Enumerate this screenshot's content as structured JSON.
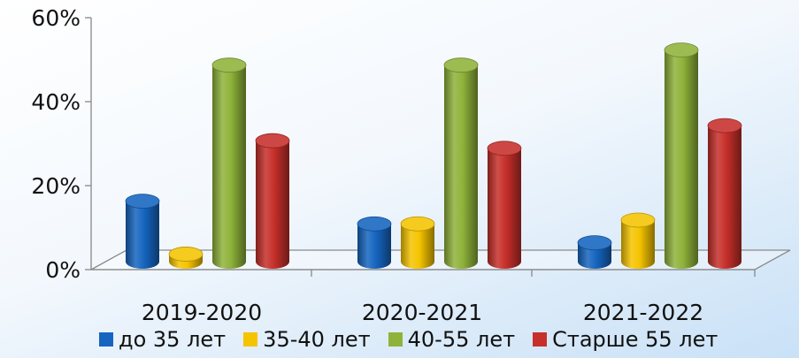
{
  "chart_data": {
    "type": "bar",
    "style": "3d-cylinder",
    "categories": [
      "2019-2020",
      "2020-2021",
      "2021-2022"
    ],
    "series": [
      {
        "name": "до 35 лет",
        "color": "#1565c0",
        "values": [
          16,
          10,
          5
        ]
      },
      {
        "name": "35-40 лет",
        "color": "#f5c400",
        "values": [
          2,
          10,
          11
        ]
      },
      {
        "name": "40-55 лет",
        "color": "#8fb33a",
        "values": [
          52,
          52,
          56
        ]
      },
      {
        "name": "Старше 55 лет",
        "color": "#c62f2a",
        "values": [
          32,
          30,
          36
        ]
      }
    ],
    "ylim": [
      0,
      60
    ],
    "yticks": [
      "0%",
      "20%",
      "40%",
      "60%"
    ],
    "y_format": "percent",
    "grid": false,
    "legend_position": "bottom"
  }
}
